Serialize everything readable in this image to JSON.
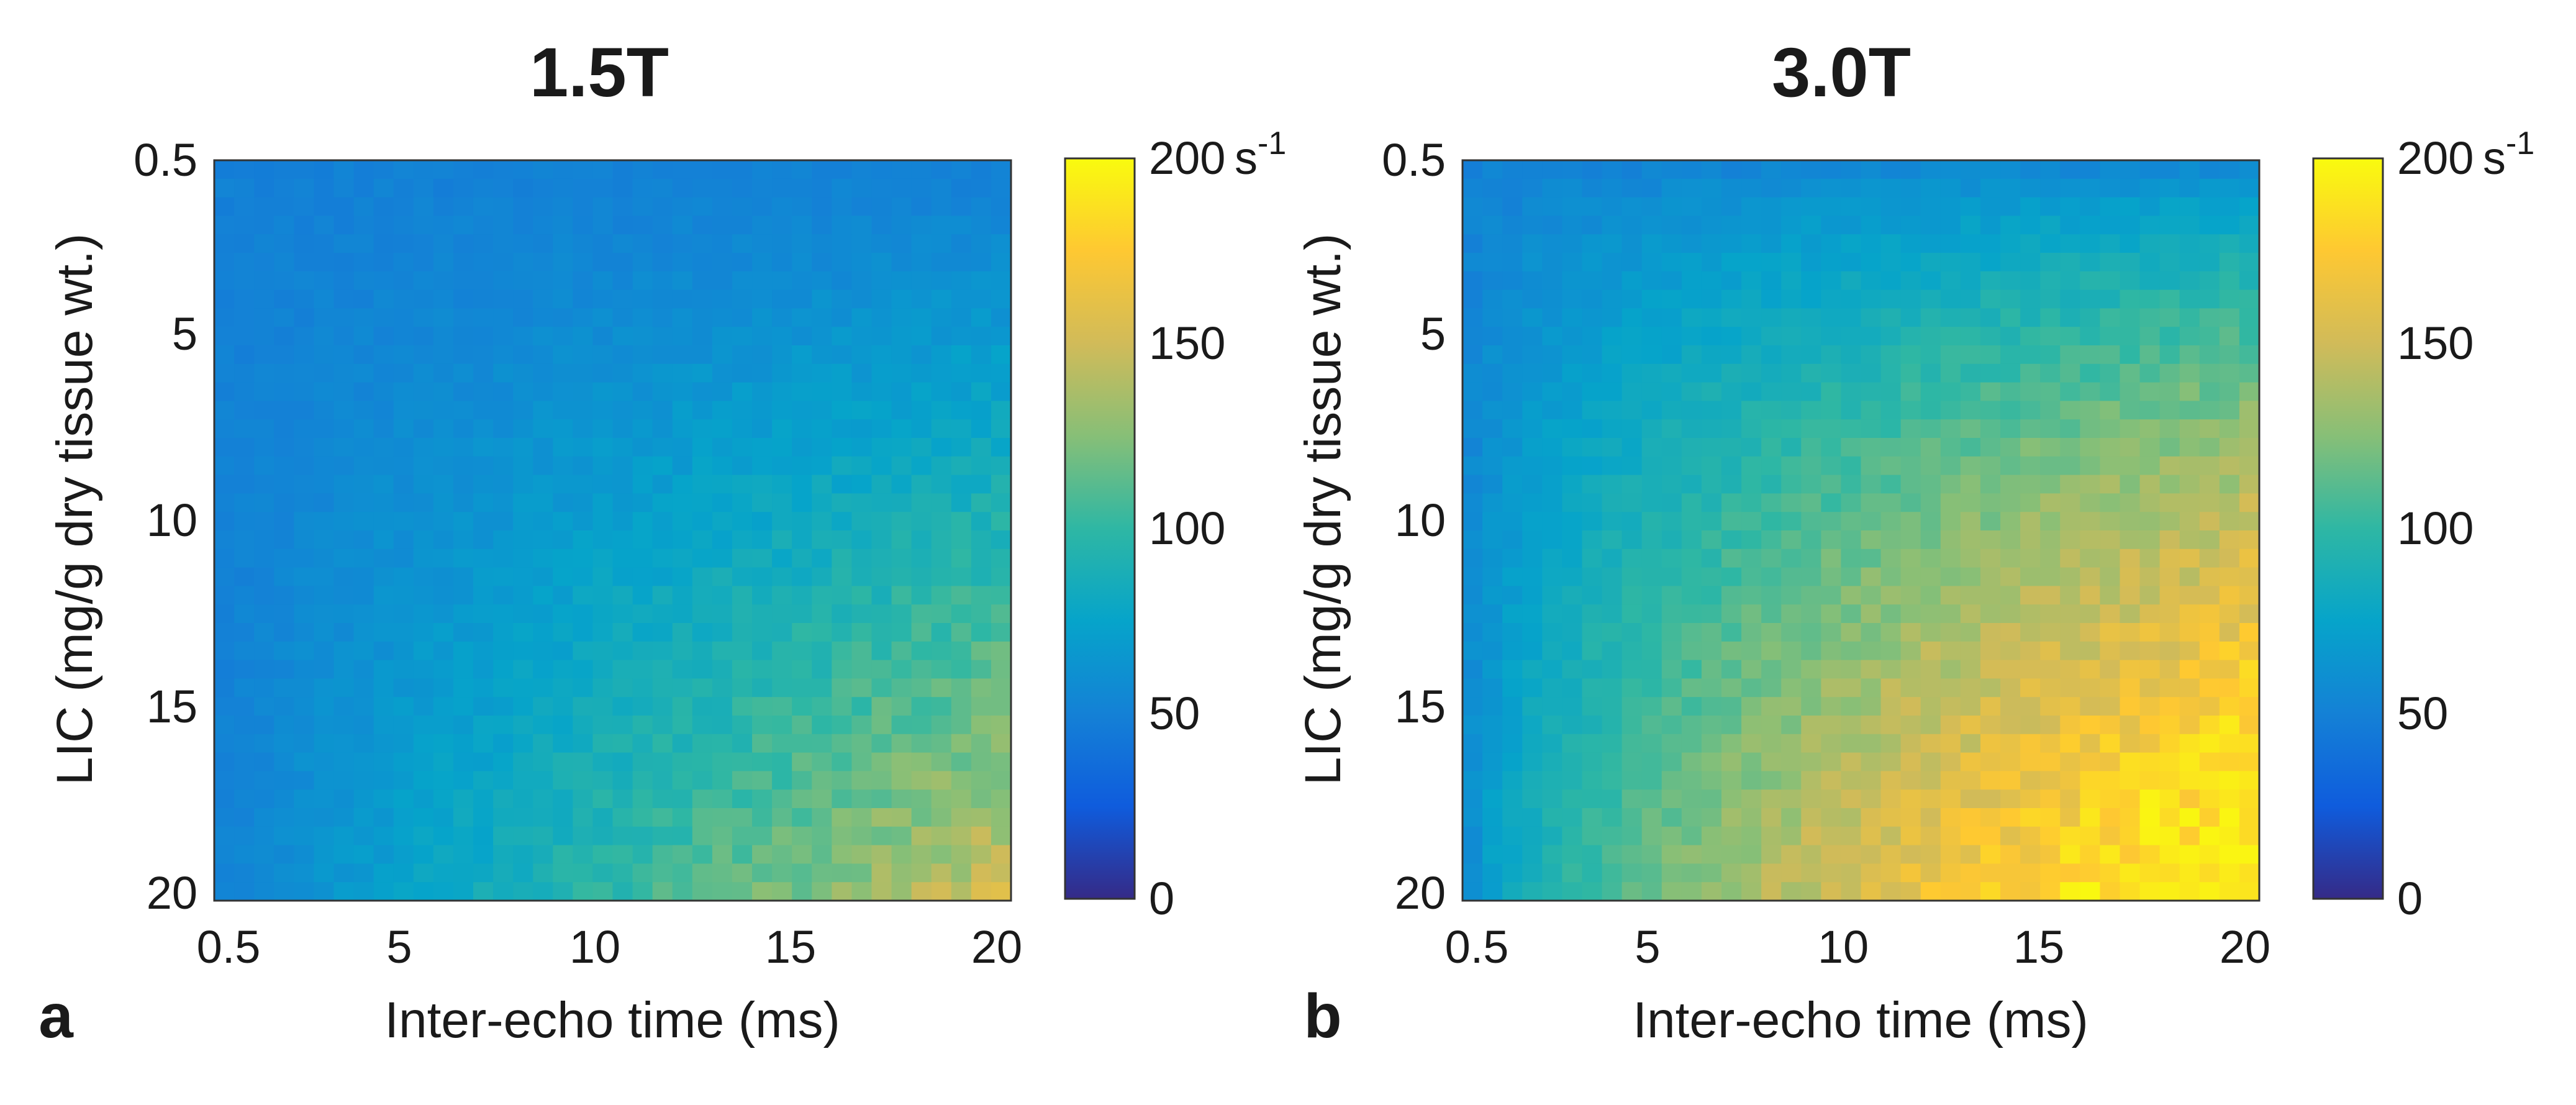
{
  "chart_data": [
    {
      "type": "heatmap",
      "panel_label": "a",
      "title": "1.5T",
      "xlabel": "Inter-echo time (ms)",
      "ylabel": "LIC (mg/g dry tissue wt.)",
      "x_ticks": [
        "0.5",
        "5",
        "10",
        "15",
        "20"
      ],
      "y_ticks": [
        "0.5",
        "5",
        "10",
        "15",
        "20"
      ],
      "xlim": [
        0.5,
        20
      ],
      "ylim": [
        0.5,
        20
      ],
      "y_direction": "down",
      "colorbar": {
        "ticks": [
          "0",
          "50",
          "100",
          "150",
          "200"
        ],
        "range": [
          0,
          200
        ],
        "unit": "s",
        "unit_exp": "-1",
        "colors": [
          "#352a87",
          "#0f5cdd",
          "#1481d6",
          "#06a4ca",
          "#2eb7a4",
          "#87bf77",
          "#d1bb59",
          "#fec832",
          "#f9fb0e"
        ]
      },
      "grid": {
        "rows": 40,
        "cols": 40
      },
      "surface": {
        "base": 50,
        "edge_max": 150,
        "x_exponent": 1.0,
        "y_exponent": 1.2,
        "noise": 10,
        "plateau": null
      }
    },
    {
      "type": "heatmap",
      "panel_label": "b",
      "title": "3.0T",
      "xlabel": "Inter-echo time (ms)",
      "ylabel": "LIC (mg/g dry tissue wt.)",
      "x_ticks": [
        "0.5",
        "5",
        "10",
        "15",
        "20"
      ],
      "y_ticks": [
        "0.5",
        "5",
        "10",
        "15",
        "20"
      ],
      "xlim": [
        0.5,
        20
      ],
      "ylim": [
        0.5,
        20
      ],
      "y_direction": "down",
      "colorbar": {
        "ticks": [
          "0",
          "50",
          "100",
          "150",
          "200"
        ],
        "range": [
          0,
          200
        ],
        "unit": "s",
        "unit_exp": "-1",
        "colors": [
          "#352a87",
          "#0f5cdd",
          "#1481d6",
          "#06a4ca",
          "#2eb7a4",
          "#87bf77",
          "#d1bb59",
          "#fec832",
          "#f9fb0e"
        ]
      },
      "grid": {
        "rows": 40,
        "cols": 40
      },
      "surface": {
        "base": 50,
        "edge_max": 210,
        "x_exponent": 0.6,
        "y_exponent": 0.7,
        "noise": 14,
        "plateau": 200
      }
    }
  ]
}
